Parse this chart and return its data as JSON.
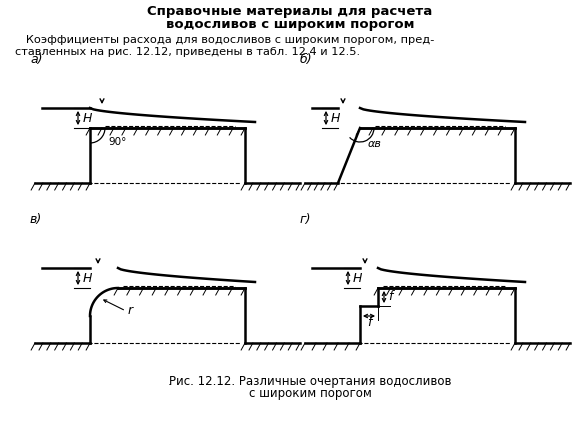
{
  "title_line1": "Справочные материалы для расчета",
  "title_line2": "водосливов с широким порогом",
  "body_text_line1": "   Коэффициенты расхода для водосливов с широким порогом, пред-",
  "body_text_line2": "ставленных на рис. 12.12, приведены в табл. 12.4 и 12.5.",
  "label_a": "а)",
  "label_b": "б)",
  "label_v": "в)",
  "label_g": "г)",
  "label_H": "H",
  "label_90": "90°",
  "label_alpha": "αв",
  "label_r": "r",
  "label_f1": "f",
  "label_f2": "f",
  "caption_line1": "Рис. 12.12. Различные очертания водосливов",
  "caption_line2": "с широким порогом",
  "dot": ".",
  "bg_color": "#ffffff",
  "line_color": "#000000"
}
